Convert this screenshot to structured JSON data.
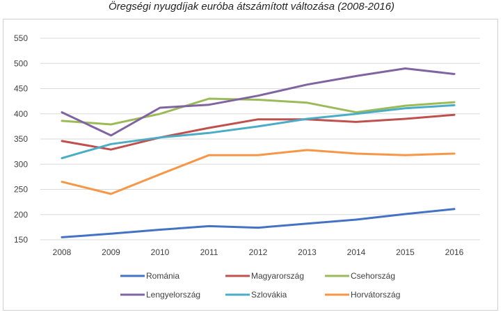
{
  "chart_data": {
    "type": "line",
    "title": "Öregségi nyugdíjak euróba átszámított változása (2008-2016)",
    "xlabel": "",
    "ylabel": "",
    "categories": [
      "2008",
      "2009",
      "2010",
      "2011",
      "2012",
      "2013",
      "2014",
      "2015",
      "2016"
    ],
    "ylim": [
      150,
      550
    ],
    "yticks": [
      150,
      200,
      250,
      300,
      350,
      400,
      450,
      500,
      550
    ],
    "grid": true,
    "legend_position": "bottom",
    "series": [
      {
        "name": "Románia",
        "color": "#4472c4",
        "values": [
          155,
          162,
          170,
          177,
          174,
          182,
          190,
          201,
          211
        ]
      },
      {
        "name": "Magyarország",
        "color": "#c0504d",
        "values": [
          346,
          329,
          353,
          372,
          389,
          389,
          384,
          390,
          398
        ]
      },
      {
        "name": "Csehország",
        "color": "#9bbb59",
        "values": [
          386,
          379,
          400,
          430,
          428,
          422,
          403,
          416,
          423
        ]
      },
      {
        "name": "Lengyelország",
        "color": "#8064a2",
        "values": [
          403,
          357,
          412,
          418,
          436,
          458,
          475,
          490,
          479
        ]
      },
      {
        "name": "Szlovákia",
        "color": "#4bacc6",
        "values": [
          312,
          340,
          353,
          362,
          375,
          390,
          400,
          411,
          417
        ]
      },
      {
        "name": "Horvátország",
        "color": "#f79646",
        "values": [
          265,
          241,
          280,
          318,
          318,
          328,
          321,
          318,
          321
        ]
      }
    ]
  }
}
